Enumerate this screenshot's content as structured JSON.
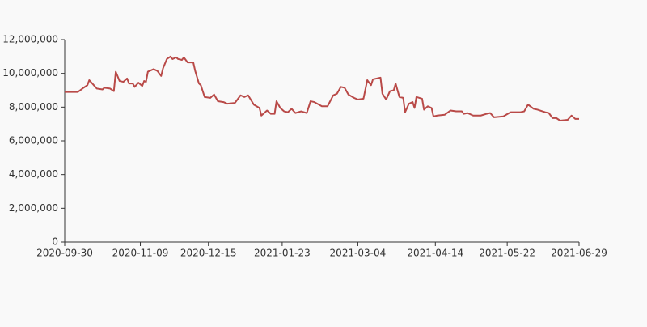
{
  "chart_data": {
    "type": "line",
    "x": [
      "2020-09-30",
      "2020-10-07",
      "2020-10-10",
      "2020-10-12",
      "2020-10-13",
      "2020-10-15",
      "2020-10-17",
      "2020-10-20",
      "2020-10-21",
      "2020-10-24",
      "2020-10-26",
      "2020-10-27",
      "2020-10-29",
      "2020-10-31",
      "2020-11-02",
      "2020-11-03",
      "2020-11-05",
      "2020-11-06",
      "2020-11-08",
      "2020-11-10",
      "2020-11-11",
      "2020-11-12",
      "2020-11-13",
      "2020-11-16",
      "2020-11-18",
      "2020-11-20",
      "2020-11-21",
      "2020-11-23",
      "2020-11-25",
      "2020-11-26",
      "2020-11-28",
      "2020-11-29",
      "2020-12-01",
      "2020-12-02",
      "2020-12-04",
      "2020-12-07",
      "2020-12-08",
      "2020-12-10",
      "2020-12-11",
      "2020-12-13",
      "2020-12-16",
      "2020-12-18",
      "2020-12-20",
      "2020-12-23",
      "2020-12-25",
      "2020-12-29",
      "2021-01-01",
      "2021-01-03",
      "2021-01-05",
      "2021-01-08",
      "2021-01-11",
      "2021-01-12",
      "2021-01-15",
      "2021-01-17",
      "2021-01-19",
      "2021-01-20",
      "2021-01-22",
      "2021-01-24",
      "2021-01-26",
      "2021-01-28",
      "2021-01-30",
      "2021-02-02",
      "2021-02-05",
      "2021-02-07",
      "2021-02-09",
      "2021-02-13",
      "2021-02-16",
      "2021-02-19",
      "2021-02-21",
      "2021-02-23",
      "2021-02-25",
      "2021-02-27",
      "2021-03-02",
      "2021-03-04",
      "2021-03-07",
      "2021-03-09",
      "2021-03-11",
      "2021-03-12",
      "2021-03-16",
      "2021-03-17",
      "2021-03-19",
      "2021-03-21",
      "2021-03-23",
      "2021-03-24",
      "2021-03-26",
      "2021-03-28",
      "2021-03-29",
      "2021-03-31",
      "2021-04-02",
      "2021-04-03",
      "2021-04-04",
      "2021-04-07",
      "2021-04-08",
      "2021-04-10",
      "2021-04-12",
      "2021-04-13",
      "2021-04-15",
      "2021-04-19",
      "2021-04-22",
      "2021-04-25",
      "2021-04-28",
      "2021-04-29",
      "2021-05-01",
      "2021-05-04",
      "2021-05-08",
      "2021-05-11",
      "2021-05-13",
      "2021-05-15",
      "2021-05-20",
      "2021-05-23",
      "2021-05-24",
      "2021-05-26",
      "2021-05-29",
      "2021-05-31",
      "2021-06-02",
      "2021-06-05",
      "2021-06-07",
      "2021-06-11",
      "2021-06-13",
      "2021-06-15",
      "2021-06-17",
      "2021-06-19",
      "2021-06-23",
      "2021-06-25",
      "2021-06-27",
      "2021-06-29"
    ],
    "series": [
      {
        "color": "#b94a48",
        "values": [
          8900000,
          8900000,
          9150000,
          9300000,
          9600000,
          9350000,
          9100000,
          9050000,
          9150000,
          9100000,
          8950000,
          10100000,
          9550000,
          9500000,
          9700000,
          9400000,
          9400000,
          9200000,
          9450000,
          9250000,
          9550000,
          9500000,
          10100000,
          10250000,
          10150000,
          9850000,
          10300000,
          10850000,
          11000000,
          10850000,
          10950000,
          10850000,
          10800000,
          10950000,
          10650000,
          10650000,
          10150000,
          9400000,
          9300000,
          8600000,
          8550000,
          8750000,
          8350000,
          8300000,
          8200000,
          8250000,
          8700000,
          8600000,
          8700000,
          8150000,
          7950000,
          7500000,
          7800000,
          7600000,
          7600000,
          8350000,
          7950000,
          7750000,
          7700000,
          7900000,
          7650000,
          7750000,
          7650000,
          8350000,
          8300000,
          8050000,
          8050000,
          8700000,
          8800000,
          9200000,
          9150000,
          8750000,
          8550000,
          8450000,
          8500000,
          9600000,
          9300000,
          9650000,
          9750000,
          8800000,
          8450000,
          8950000,
          9000000,
          9400000,
          8600000,
          8550000,
          7700000,
          8200000,
          8300000,
          7950000,
          8600000,
          8500000,
          7850000,
          8050000,
          7950000,
          7450000,
          7500000,
          7550000,
          7800000,
          7750000,
          7750000,
          7600000,
          7650000,
          7500000,
          7500000,
          7600000,
          7650000,
          7400000,
          7450000,
          7650000,
          7700000,
          7700000,
          7700000,
          7750000,
          8150000,
          7900000,
          7850000,
          7700000,
          7650000,
          7350000,
          7350000,
          7200000,
          7250000,
          7500000,
          7300000,
          7300000
        ]
      }
    ],
    "xlim": [
      "2020-09-30",
      "2021-06-29"
    ],
    "xticks": [
      "2020-09-30",
      "2020-11-09",
      "2020-12-15",
      "2021-01-23",
      "2021-03-04",
      "2021-04-14",
      "2021-05-22",
      "2021-06-29"
    ],
    "ylim": [
      0,
      12000000
    ],
    "yticks": [
      0,
      {
        "value": 2000000,
        "label": "2,000,000"
      },
      {
        "value": 4000000,
        "label": "4,000,000"
      },
      {
        "value": 6000000,
        "label": "6,000,000"
      },
      {
        "value": 8000000,
        "label": "8,000,000"
      },
      {
        "value": 10000000,
        "label": "10,000,000"
      },
      {
        "value": 12000000,
        "label": "12,000,000"
      }
    ],
    "grid": false
  }
}
